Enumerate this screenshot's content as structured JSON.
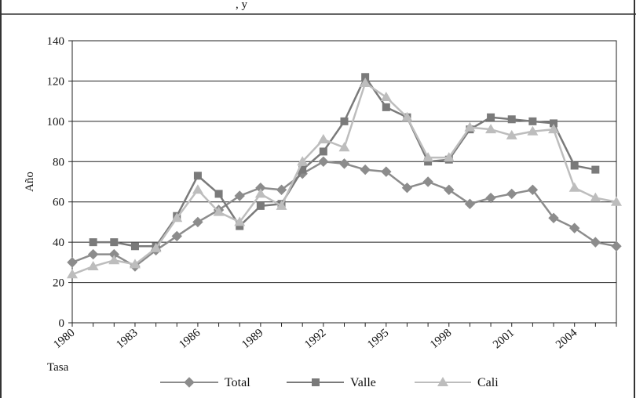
{
  "header": {
    "title_fragment": ", y"
  },
  "chart_data": {
    "type": "line",
    "title": "",
    "ylabel": "Año",
    "xlabel": "Tasa",
    "ylim": [
      0,
      140
    ],
    "yticks": [
      0,
      20,
      40,
      60,
      80,
      100,
      120,
      140
    ],
    "xlim": [
      1980,
      2006
    ],
    "xtick_labels": [
      "1980",
      "1983",
      "1986",
      "1989",
      "1992",
      "1995",
      "1998",
      "2001",
      "2004"
    ],
    "grid": "horizontal",
    "legend_position": "bottom",
    "series": [
      {
        "name": "Total",
        "color": "#8c8c8c",
        "marker": "diamond",
        "x": [
          1980,
          1981,
          1982,
          1983,
          1984,
          1985,
          1986,
          1987,
          1988,
          1989,
          1990,
          1991,
          1992,
          1993,
          1994,
          1995,
          1996,
          1997,
          1998,
          1999,
          2000,
          2001,
          2002,
          2003,
          2004,
          2005,
          2006
        ],
        "values": [
          30,
          34,
          34,
          28,
          36,
          43,
          50,
          56,
          63,
          67,
          66,
          74,
          80,
          79,
          76,
          75,
          67,
          70,
          66,
          59,
          62,
          64,
          66,
          52,
          47,
          40,
          38
        ]
      },
      {
        "name": "Valle",
        "color": "#7a7a7a",
        "marker": "square",
        "x": [
          1981,
          1982,
          1983,
          1984,
          1985,
          1986,
          1987,
          1988,
          1989,
          1990,
          1991,
          1992,
          1993,
          1994,
          1995,
          1996,
          1997,
          1998,
          1999,
          2000,
          2001,
          2002,
          2003,
          2004,
          2005
        ],
        "values": [
          40,
          40,
          38,
          38,
          53,
          73,
          64,
          48,
          58,
          59,
          76,
          85,
          100,
          122,
          107,
          102,
          80,
          81,
          96,
          102,
          101,
          100,
          99,
          78,
          76
        ]
      },
      {
        "name": "Cali",
        "color": "#bdbdbd",
        "marker": "triangle",
        "x": [
          1980,
          1981,
          1982,
          1983,
          1984,
          1985,
          1986,
          1987,
          1988,
          1989,
          1990,
          1991,
          1992,
          1993,
          1994,
          1995,
          1996,
          1997,
          1998,
          1999,
          2000,
          2001,
          2002,
          2003,
          2004,
          2005,
          2006
        ],
        "values": [
          24,
          28,
          31,
          29,
          37,
          52,
          66,
          55,
          50,
          64,
          58,
          80,
          91,
          87,
          119,
          112,
          102,
          82,
          82,
          97,
          96,
          93,
          95,
          96,
          67,
          62,
          60
        ]
      }
    ]
  }
}
